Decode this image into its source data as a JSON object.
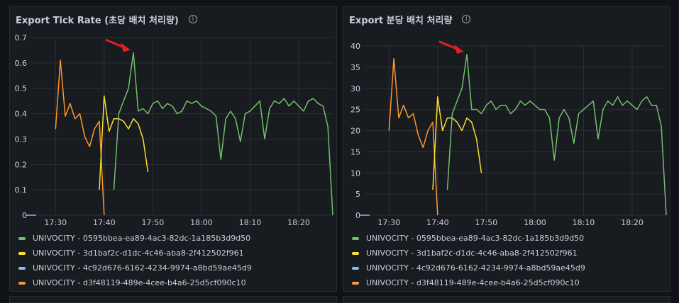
{
  "series_names": [
    "UNIVOCITY - 0595bbea-ea89-4ac3-82dc-1a185b3d9d50",
    "UNIVOCITY - 3d1baf2c-d1dc-4c46-aba8-2f412502f961",
    "UNIVOCITY - 4c92d676-6162-4234-9974-a8bd59ae45d9",
    "UNIVOCITY - d3f48119-489e-4cee-b4a6-25d5cf090c10"
  ],
  "colors": {
    "background": "#111217",
    "panel": "#181b1f",
    "grid": "#2c2f36",
    "text": "#ccccdc",
    "series": [
      "#73bf69",
      "#fade2a",
      "#8ab8ff",
      "#ff9830"
    ],
    "arrow": "#e02020"
  },
  "chart_data": [
    {
      "type": "line",
      "title": "Export Tick Rate (초당 배치 처리량)",
      "info_icon": "info-icon",
      "annotation_icon": "red-arrow-icon",
      "xlim": [
        "17:25",
        "18:27"
      ],
      "x_ticks": [
        "17:30",
        "17:40",
        "17:50",
        "18:00",
        "18:10",
        "18:20"
      ],
      "ylim": [
        0,
        0.7
      ],
      "y_ticks": [
        "0",
        "0.1",
        "0.2",
        "0.3",
        "0.4",
        "0.5",
        "0.6",
        "0.7"
      ],
      "grid": true,
      "legend_position": "bottom",
      "series": [
        {
          "name": "UNIVOCITY - 0595bbea-ea89-4ac3-82dc-1a185b3d9d50",
          "points": [
            [
              "17:42",
              "0.10"
            ],
            [
              "17:43",
              "0.40"
            ],
            [
              "17:44",
              "0.45"
            ],
            [
              "17:45",
              "0.50"
            ],
            [
              "17:46",
              "0.64"
            ],
            [
              "17:47",
              "0.41"
            ],
            [
              "17:48",
              "0.42"
            ],
            [
              "17:49",
              "0.40"
            ],
            [
              "17:50",
              "0.44"
            ],
            [
              "17:51",
              "0.45"
            ],
            [
              "17:52",
              "0.42"
            ],
            [
              "17:53",
              "0.44"
            ],
            [
              "17:54",
              "0.43"
            ],
            [
              "17:55",
              "0.40"
            ],
            [
              "17:56",
              "0.41"
            ],
            [
              "17:57",
              "0.45"
            ],
            [
              "17:58",
              "0.44"
            ],
            [
              "17:59",
              "0.45"
            ],
            [
              "18:00",
              "0.43"
            ],
            [
              "18:01",
              "0.42"
            ],
            [
              "18:02",
              "0.41"
            ],
            [
              "18:03",
              "0.39"
            ],
            [
              "18:04",
              "0.22"
            ],
            [
              "18:05",
              "0.38"
            ],
            [
              "18:06",
              "0.41"
            ],
            [
              "18:07",
              "0.38"
            ],
            [
              "18:08",
              "0.29"
            ],
            [
              "18:09",
              "0.40"
            ],
            [
              "18:10",
              "0.41"
            ],
            [
              "18:11",
              "0.43"
            ],
            [
              "18:12",
              "0.45"
            ],
            [
              "18:13",
              "0.30"
            ],
            [
              "18:14",
              "0.42"
            ],
            [
              "18:15",
              "0.45"
            ],
            [
              "18:16",
              "0.44"
            ],
            [
              "18:17",
              "0.46"
            ],
            [
              "18:18",
              "0.43"
            ],
            [
              "18:19",
              "0.45"
            ],
            [
              "18:20",
              "0.43"
            ],
            [
              "18:21",
              "0.41"
            ],
            [
              "18:22",
              "0.45"
            ],
            [
              "18:23",
              "0.46"
            ],
            [
              "18:24",
              "0.44"
            ],
            [
              "18:25",
              "0.43"
            ],
            [
              "18:26",
              "0.35"
            ],
            [
              "18:27",
              "0.0"
            ]
          ]
        },
        {
          "name": "UNIVOCITY - 3d1baf2c-d1dc-4c46-aba8-2f412502f961",
          "points": [
            [
              "17:39",
              "0.10"
            ],
            [
              "17:40",
              "0.47"
            ],
            [
              "17:41",
              "0.33"
            ],
            [
              "17:42",
              "0.38"
            ],
            [
              "17:43",
              "0.38"
            ],
            [
              "17:44",
              "0.37"
            ],
            [
              "17:45",
              "0.34"
            ],
            [
              "17:46",
              "0.38"
            ],
            [
              "17:47",
              "0.36"
            ],
            [
              "17:48",
              "0.30"
            ],
            [
              "17:49",
              "0.17"
            ]
          ]
        },
        {
          "name": "UNIVOCITY - 4c92d676-6162-4234-9974-a8bd59ae45d9",
          "points": [
            [
              "17:24",
              "0"
            ],
            [
              "17:26",
              "0"
            ]
          ]
        },
        {
          "name": "UNIVOCITY - d3f48119-489e-4cee-b4a6-25d5cf090c10",
          "points": [
            [
              "17:30",
              "0.34"
            ],
            [
              "17:31",
              "0.61"
            ],
            [
              "17:32",
              "0.39"
            ],
            [
              "17:33",
              "0.44"
            ],
            [
              "17:34",
              "0.38"
            ],
            [
              "17:35",
              "0.40"
            ],
            [
              "17:36",
              "0.31"
            ],
            [
              "17:37",
              "0.27"
            ],
            [
              "17:38",
              "0.34"
            ],
            [
              "17:39",
              "0.37"
            ],
            [
              "17:40",
              "0.0"
            ]
          ]
        }
      ]
    },
    {
      "type": "line",
      "title": "Export 분당 배치 처리량",
      "info_icon": "info-icon",
      "annotation_icon": "red-arrow-icon",
      "xlim": [
        "17:25",
        "18:27"
      ],
      "x_ticks": [
        "17:30",
        "17:40",
        "17:50",
        "18:00",
        "18:10",
        "18:20"
      ],
      "ylim": [
        0,
        40
      ],
      "y_ticks": [
        "0",
        "5",
        "10",
        "15",
        "20",
        "25",
        "30",
        "35",
        "40"
      ],
      "grid": true,
      "legend_position": "bottom",
      "series": [
        {
          "name": "UNIVOCITY - 0595bbea-ea89-4ac3-82dc-1a185b3d9d50",
          "points": [
            [
              "17:42",
              "6"
            ],
            [
              "17:43",
              "24"
            ],
            [
              "17:44",
              "27"
            ],
            [
              "17:45",
              "30"
            ],
            [
              "17:46",
              "38"
            ],
            [
              "17:47",
              "25"
            ],
            [
              "17:48",
              "25"
            ],
            [
              "17:49",
              "24"
            ],
            [
              "17:50",
              "26"
            ],
            [
              "17:51",
              "27"
            ],
            [
              "17:52",
              "25"
            ],
            [
              "17:53",
              "26"
            ],
            [
              "17:54",
              "26"
            ],
            [
              "17:55",
              "24"
            ],
            [
              "17:56",
              "25"
            ],
            [
              "17:57",
              "27"
            ],
            [
              "17:58",
              "26"
            ],
            [
              "17:59",
              "27"
            ],
            [
              "18:00",
              "26"
            ],
            [
              "18:01",
              "25"
            ],
            [
              "18:02",
              "25"
            ],
            [
              "18:03",
              "23"
            ],
            [
              "18:04",
              "13"
            ],
            [
              "18:05",
              "23"
            ],
            [
              "18:06",
              "25"
            ],
            [
              "18:07",
              "23"
            ],
            [
              "18:08",
              "17"
            ],
            [
              "18:09",
              "24"
            ],
            [
              "18:10",
              "25"
            ],
            [
              "18:11",
              "26"
            ],
            [
              "18:12",
              "27"
            ],
            [
              "18:13",
              "18"
            ],
            [
              "18:14",
              "25"
            ],
            [
              "18:15",
              "27"
            ],
            [
              "18:16",
              "26"
            ],
            [
              "18:17",
              "28"
            ],
            [
              "18:18",
              "26"
            ],
            [
              "18:19",
              "27"
            ],
            [
              "18:20",
              "26"
            ],
            [
              "18:21",
              "25"
            ],
            [
              "18:22",
              "27"
            ],
            [
              "18:23",
              "28"
            ],
            [
              "18:24",
              "26"
            ],
            [
              "18:25",
              "26"
            ],
            [
              "18:26",
              "21"
            ],
            [
              "18:27",
              "0"
            ]
          ]
        },
        {
          "name": "UNIVOCITY - 3d1baf2c-d1dc-4c46-aba8-2f412502f961",
          "points": [
            [
              "17:39",
              "6"
            ],
            [
              "17:40",
              "28"
            ],
            [
              "17:41",
              "20"
            ],
            [
              "17:42",
              "23"
            ],
            [
              "17:43",
              "23"
            ],
            [
              "17:44",
              "22"
            ],
            [
              "17:45",
              "20"
            ],
            [
              "17:46",
              "23"
            ],
            [
              "17:47",
              "22"
            ],
            [
              "17:48",
              "18"
            ],
            [
              "17:49",
              "10"
            ]
          ]
        },
        {
          "name": "UNIVOCITY - 4c92d676-6162-4234-9974-a8bd59ae45d9",
          "points": [
            [
              "17:24",
              "0"
            ],
            [
              "17:26",
              "0"
            ]
          ]
        },
        {
          "name": "UNIVOCITY - d3f48119-489e-4cee-b4a6-25d5cf090c10",
          "points": [
            [
              "17:30",
              "20"
            ],
            [
              "17:31",
              "37"
            ],
            [
              "17:32",
              "23"
            ],
            [
              "17:33",
              "26"
            ],
            [
              "17:34",
              "23"
            ],
            [
              "17:35",
              "24"
            ],
            [
              "17:36",
              "19"
            ],
            [
              "17:37",
              "16"
            ],
            [
              "17:38",
              "20"
            ],
            [
              "17:39",
              "22"
            ],
            [
              "17:40",
              "0"
            ]
          ]
        }
      ]
    }
  ]
}
